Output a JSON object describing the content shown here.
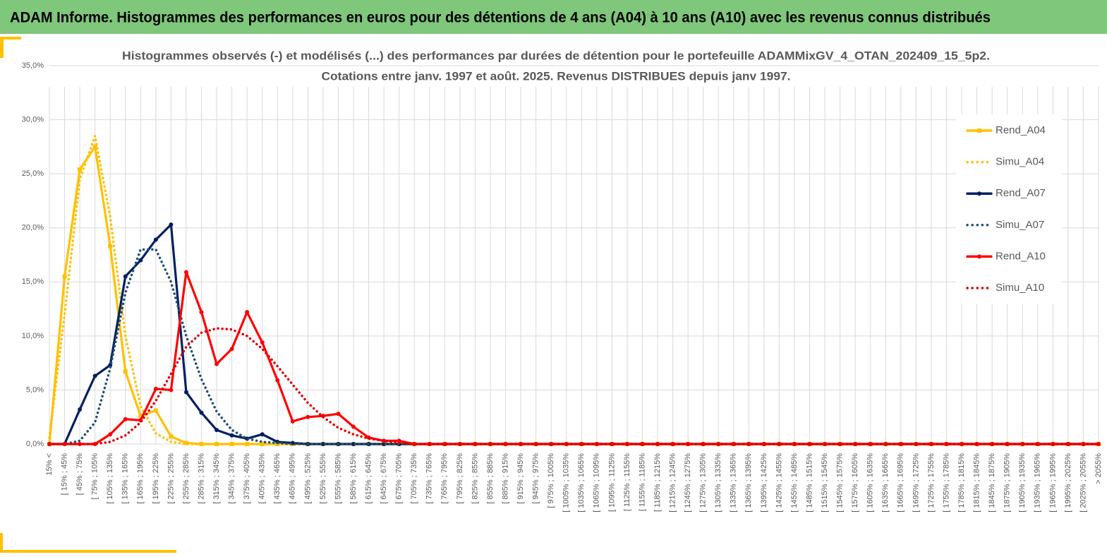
{
  "page_title": "ADAM Informe. Histogrammes des performances en euros pour des détentions de 4 ans (A04) à 10 ans (A10) avec les revenus connus distribués",
  "chart_data": {
    "type": "line",
    "title": [
      "Histogrammes observés (-) et modélisés (...) des performances par durées de détention pour le portefeuille ADAMMixGV_4_OTAN_202409_15_5p2.",
      "Cotations entre janv. 1997 et août. 2025. Revenus DISTRIBUES depuis janv 1997."
    ],
    "categories": [
      "15% <",
      "[ 15% ; 45%",
      "[ 45% ; 75%",
      "[ 75% ; 105%",
      "[ 105% ; 135%",
      "[ 135% ; 165%",
      "[ 165% ; 195%",
      "[ 195% ; 225%",
      "[ 225% ; 255%",
      "[ 255% ; 285%",
      "[ 285% ; 315%",
      "[ 315% ; 345%",
      "[ 345% ; 375%",
      "[ 375% ; 405%",
      "[ 405% ; 435%",
      "[ 435% ; 465%",
      "[ 465% ; 495%",
      "[ 495% ; 525%",
      "[ 525% ; 555%",
      "[ 555% ; 585%",
      "[ 585% ; 615%",
      "[ 615% ; 645%",
      "[ 645% ; 675%",
      "[ 675% ; 705%",
      "[ 705% ; 735%",
      "[ 735% ; 765%",
      "[ 765% ; 795%",
      "[ 795% ; 825%",
      "[ 825% ; 855%",
      "[ 855% ; 885%",
      "[ 885% ; 915%",
      "[ 915% ; 945%",
      "[ 945% ; 975%",
      "[ 975% ; 1005%",
      "[ 1005% ; 1035%",
      "[ 1035% ; 1065%",
      "[ 1065% ; 1095%",
      "[ 1095% ; 1125%",
      "[ 1125% ; 1155%",
      "[ 1155% ; 1185%",
      "[ 1185% ; 1215%",
      "[ 1215% ; 1245%",
      "[ 1245% ; 1275%",
      "[ 1275% ; 1305%",
      "[ 1305% ; 1335%",
      "[ 1335% ; 1365%",
      "[ 1365% ; 1395%",
      "[ 1395% ; 1425%",
      "[ 1425% ; 1455%",
      "[ 1455% ; 1485%",
      "[ 1485% ; 1515%",
      "[ 1515% ; 1545%",
      "[ 1545% ; 1575%",
      "[ 1575% ; 1605%",
      "[ 1605% ; 1635%",
      "[ 1635% ; 1665%",
      "[ 1665% ; 1695%",
      "[ 1695% ; 1725%",
      "[ 1725% ; 1755%",
      "[ 1755% ; 1785%",
      "[ 1785% ; 1815%",
      "[ 1815% ; 1845%",
      "[ 1845% ; 1875%",
      "[ 1875% ; 1905%",
      "[ 1905% ; 1935%",
      "[ 1935% ; 1965%",
      "[ 1965% ; 1995%",
      "[ 1995% ; 2025%",
      "[ 2025% ; 2055%",
      "> 2055%"
    ],
    "series": [
      {
        "name": "Rend_A04",
        "color": "#ffc000",
        "dashed": false,
        "marker": "square",
        "values": [
          0,
          15.5,
          25.4,
          27.5,
          18.3,
          6.7,
          2.6,
          3.1,
          0.7,
          0.1,
          0,
          0,
          0,
          0,
          0,
          0,
          0,
          0,
          0,
          0,
          0,
          0,
          0,
          0,
          0,
          0,
          0,
          0,
          0,
          0,
          0,
          0,
          0,
          0,
          0,
          0,
          0,
          0,
          0,
          0,
          0,
          0,
          0,
          0,
          0,
          0,
          0,
          0,
          0,
          0,
          0,
          0,
          0,
          0,
          0,
          0,
          0,
          0,
          0,
          0,
          0,
          0,
          0,
          0,
          0,
          0,
          0,
          0,
          0,
          0
        ]
      },
      {
        "name": "Simu_A04",
        "color": "#ffc000",
        "dashed": true,
        "marker": "none",
        "values": [
          0.6,
          12,
          24.5,
          28.5,
          21,
          10,
          3.5,
          1,
          0.2,
          0,
          0,
          0,
          0,
          0,
          0,
          0,
          0,
          0,
          0,
          0,
          0,
          0,
          0,
          0,
          0,
          0,
          0,
          0,
          0,
          0,
          0,
          0,
          0,
          0,
          0,
          0,
          0,
          0,
          0,
          0,
          0,
          0,
          0,
          0,
          0,
          0,
          0,
          0,
          0,
          0,
          0,
          0,
          0,
          0,
          0,
          0,
          0,
          0,
          0,
          0,
          0,
          0,
          0,
          0,
          0,
          0,
          0,
          0,
          0,
          0
        ]
      },
      {
        "name": "Rend_A07",
        "color": "#002060",
        "dashed": false,
        "marker": "circle",
        "values": [
          0,
          0,
          3.2,
          6.3,
          7.3,
          15.5,
          17,
          18.9,
          20.3,
          4.8,
          2.9,
          1.3,
          0.8,
          0.5,
          0.9,
          0.2,
          0.1,
          0,
          0,
          0,
          0,
          0,
          0,
          0,
          0,
          0,
          0,
          0,
          0,
          0,
          0,
          0,
          0,
          0,
          0,
          0,
          0,
          0,
          0,
          0,
          0,
          0,
          0,
          0,
          0,
          0,
          0,
          0,
          0,
          0,
          0,
          0,
          0,
          0,
          0,
          0,
          0,
          0,
          0,
          0,
          0,
          0,
          0,
          0,
          0,
          0,
          0,
          0,
          0,
          0
        ]
      },
      {
        "name": "Simu_A07",
        "color": "#1f4e79",
        "dashed": true,
        "marker": "none",
        "values": [
          0,
          0,
          0.3,
          2,
          7,
          14,
          18,
          18,
          15,
          10,
          6,
          3,
          1.3,
          0.5,
          0.2,
          0.1,
          0,
          0,
          0,
          0,
          0,
          0,
          0,
          0,
          0,
          0,
          0,
          0,
          0,
          0,
          0,
          0,
          0,
          0,
          0,
          0,
          0,
          0,
          0,
          0,
          0,
          0,
          0,
          0,
          0,
          0,
          0,
          0,
          0,
          0,
          0,
          0,
          0,
          0,
          0,
          0,
          0,
          0,
          0,
          0,
          0,
          0,
          0,
          0,
          0,
          0,
          0,
          0,
          0,
          0
        ]
      },
      {
        "name": "Rend_A10",
        "color": "#ff0000",
        "dashed": false,
        "marker": "circle",
        "values": [
          0,
          0,
          0,
          0,
          0.9,
          2.3,
          2.2,
          5.1,
          5,
          15.9,
          12.2,
          7.4,
          8.8,
          12.2,
          9.4,
          5.9,
          2.1,
          2.5,
          2.6,
          2.8,
          1.6,
          0.6,
          0.3,
          0.3,
          0,
          0,
          0,
          0,
          0,
          0,
          0,
          0,
          0,
          0,
          0,
          0,
          0,
          0,
          0,
          0,
          0,
          0,
          0,
          0,
          0,
          0,
          0,
          0,
          0,
          0,
          0,
          0,
          0,
          0,
          0,
          0,
          0,
          0,
          0,
          0,
          0,
          0,
          0,
          0,
          0,
          0,
          0,
          0,
          0,
          0
        ]
      },
      {
        "name": "Simu_A10",
        "color": "#e00000",
        "dashed": true,
        "marker": "none",
        "values": [
          0,
          0,
          0,
          0,
          0.2,
          0.8,
          2,
          4,
          6.5,
          9,
          10.3,
          10.7,
          10.6,
          10,
          8.8,
          7.2,
          5.5,
          3.8,
          2.5,
          1.5,
          0.9,
          0.5,
          0.3,
          0.1,
          0,
          0,
          0,
          0,
          0,
          0,
          0,
          0,
          0,
          0,
          0,
          0,
          0,
          0,
          0,
          0,
          0,
          0,
          0,
          0,
          0,
          0,
          0,
          0,
          0,
          0,
          0,
          0,
          0,
          0,
          0,
          0,
          0,
          0,
          0,
          0,
          0,
          0,
          0,
          0,
          0,
          0,
          0,
          0,
          0,
          0
        ]
      }
    ],
    "ylim": [
      0,
      35
    ],
    "yticks": [
      {
        "value": 0,
        "label": "0,0%"
      },
      {
        "value": 5,
        "label": "5,0%"
      },
      {
        "value": 10,
        "label": "10,0%"
      },
      {
        "value": 15,
        "label": "15,0%"
      },
      {
        "value": 20,
        "label": "20,0%"
      },
      {
        "value": 25,
        "label": "25,0%"
      },
      {
        "value": 30,
        "label": "30,0%"
      },
      {
        "value": 35,
        "label": "35,0%"
      }
    ],
    "grid": true,
    "legend": "right"
  }
}
